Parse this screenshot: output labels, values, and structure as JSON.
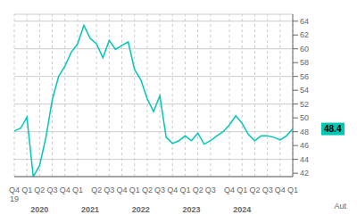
{
  "chart_data": {
    "type": "line",
    "categories": [
      "Q4\n19",
      null,
      "Q1",
      null,
      "Q2",
      null,
      "Q3",
      null,
      "Q4",
      null,
      "Q1",
      null,
      null,
      "Q2",
      null,
      "Q3",
      null,
      "Q4",
      null,
      "Q1",
      null,
      "Q2",
      null,
      "Q3",
      null,
      "Q4",
      null,
      "Q1",
      null,
      "Q2",
      null,
      "Q3",
      null,
      null,
      "Q4",
      null,
      "Q1",
      null,
      "Q2",
      null,
      "Q3",
      null,
      "Q4",
      null,
      "Q1"
    ],
    "values": [
      48.1,
      48.5,
      50.1,
      41.5,
      43.1,
      47.2,
      52.6,
      56.0,
      57.5,
      59.5,
      60.7,
      63.4,
      61.5,
      60.7,
      58.7,
      61.2,
      59.9,
      60.5,
      61.0,
      57.0,
      55.5,
      52.8,
      50.9,
      53.2,
      47.2,
      46.3,
      46.7,
      47.4,
      46.7,
      47.8,
      46.2,
      46.7,
      47.4,
      48.0,
      49.0,
      50.3,
      49.2,
      47.6,
      46.7,
      47.4,
      47.4,
      47.2,
      46.8,
      47.4,
      48.4
    ],
    "color": "#00c8b4",
    "ylim": [
      41.5,
      65.0
    ],
    "yticks": [
      42,
      44,
      46,
      48,
      50,
      52,
      54,
      56,
      58,
      60,
      62,
      64
    ],
    "grid": true,
    "annotations": [
      {
        "text": "2020",
        "x": 4
      },
      {
        "text": "2021",
        "x": 12
      },
      {
        "text": "2022",
        "x": 20
      },
      {
        "text": "2023",
        "x": 28
      },
      {
        "text": "2024",
        "x": 36
      },
      {
        "text": "48.4",
        "y": 48.4
      },
      {
        "text": "Aut"
      }
    ]
  }
}
